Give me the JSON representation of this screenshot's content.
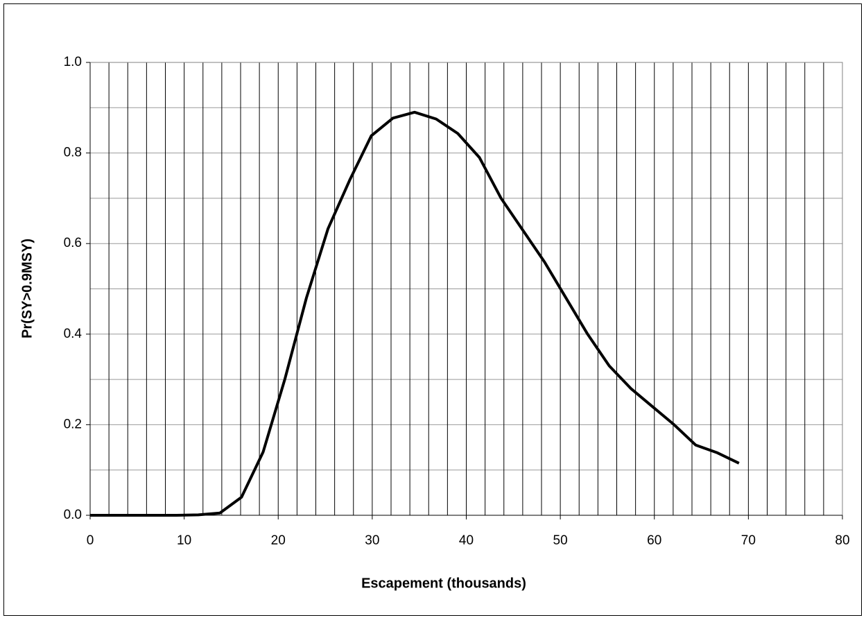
{
  "chart_data": {
    "type": "line",
    "x_label": "Escapement (thousands)",
    "y_label": "Pr(SY>0.9MSY)",
    "x": [
      0,
      2.3,
      4.6,
      6.9,
      9.2,
      11.5,
      13.8,
      16.1,
      18.4,
      20.7,
      23,
      25.3,
      27.6,
      29.9,
      32.2,
      34.5,
      36.8,
      39.1,
      41.4,
      43.7,
      46,
      48.3,
      50.6,
      52.9,
      55.2,
      57.5,
      59.8,
      62.1,
      64.4,
      66.7,
      69
    ],
    "series": [
      {
        "color": "#000000",
        "values": [
          0,
          0,
          0,
          0,
          0,
          0.001,
          0.005,
          0.04,
          0.14,
          0.3,
          0.48,
          0.633,
          0.74,
          0.838,
          0.877,
          0.89,
          0.875,
          0.843,
          0.79,
          0.7,
          0.63,
          0.56,
          0.48,
          0.4,
          0.33,
          0.28,
          0.24,
          0.2,
          0.155,
          0.138,
          0.115
        ]
      }
    ],
    "xlim": [
      0,
      80
    ],
    "xticks": [
      0,
      10,
      20,
      30,
      40,
      50,
      60,
      70,
      80
    ],
    "ylim": [
      0,
      1
    ],
    "yticks": [
      {
        "value": 0,
        "label": "0.0"
      },
      0.2,
      0.4,
      0.6,
      0.8,
      {
        "value": 1,
        "label": "1.0"
      }
    ],
    "xgrid": [
      2,
      4,
      6,
      8,
      10,
      12,
      14,
      16,
      18,
      20,
      22,
      24,
      26,
      28,
      30,
      32,
      34,
      36,
      38,
      40,
      42,
      44,
      46,
      48,
      50,
      52,
      54,
      56,
      58,
      60,
      62,
      64,
      66,
      68,
      70,
      72,
      74,
      76,
      78
    ],
    "ygrid": [
      0.1,
      0.2,
      0.3,
      0.4,
      0.5,
      0.6,
      0.7,
      0.8,
      0.9
    ]
  }
}
